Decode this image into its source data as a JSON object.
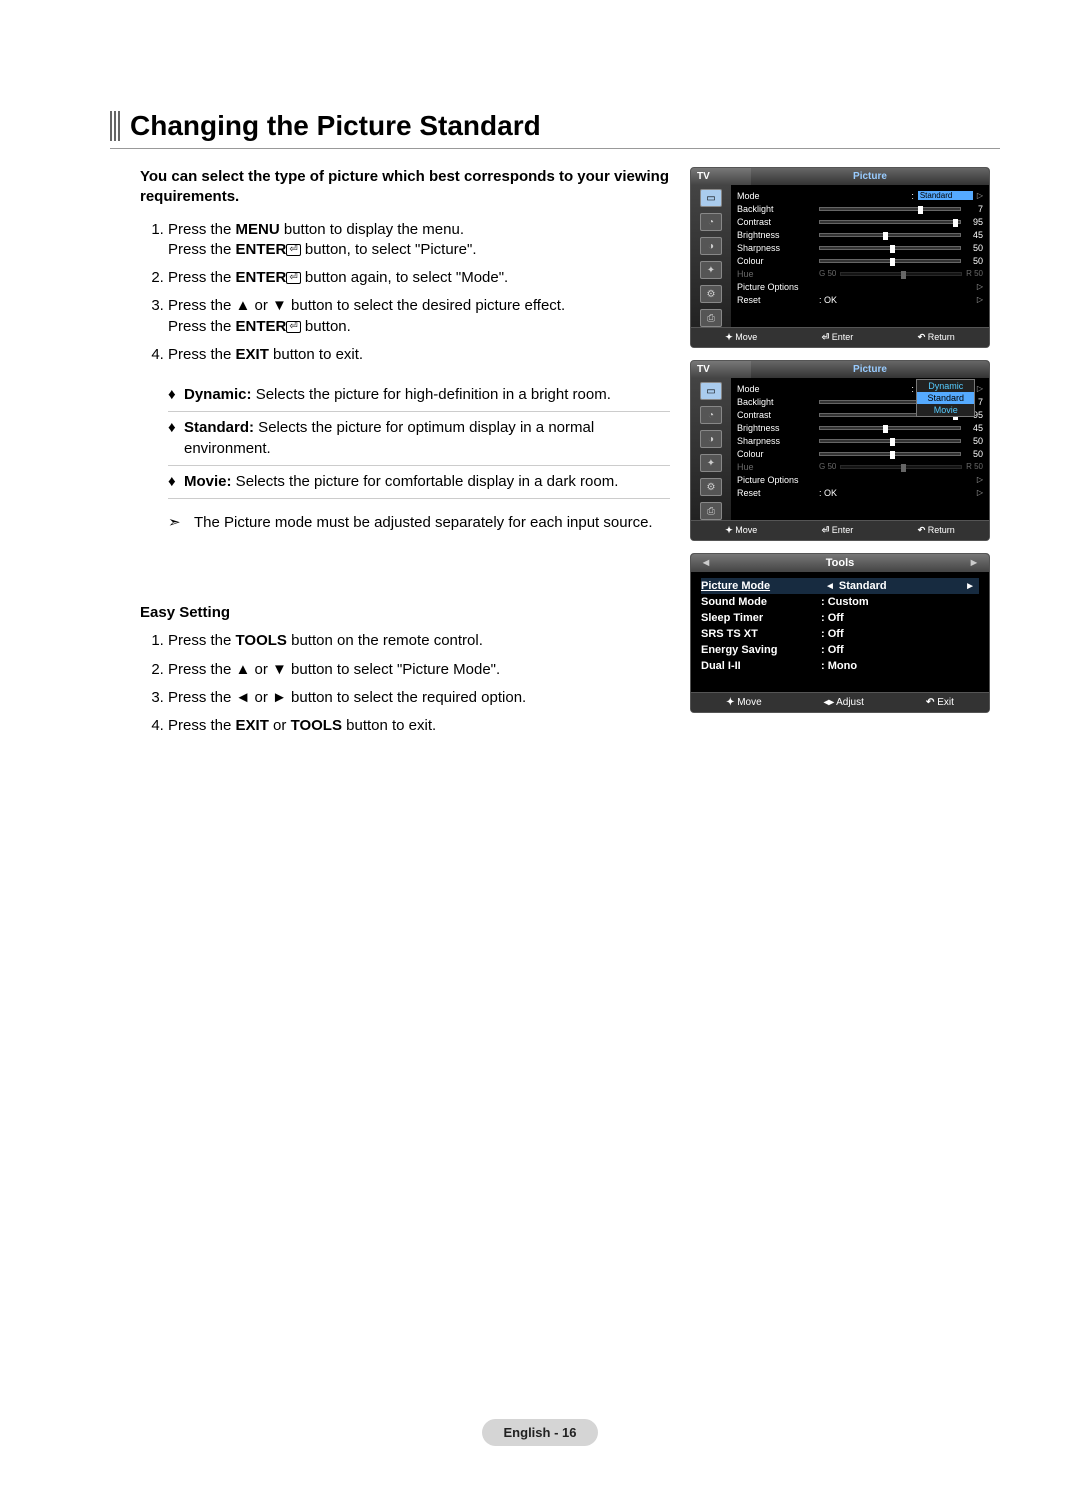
{
  "title": "Changing the Picture Standard",
  "intro": "You can select the type of picture which best corresponds to your viewing requirements.",
  "steps": [
    "Press the <b>MENU</b> button to display the menu.<br>Press the <b>ENTER</b><span class='enter-glyph'>⏎</span> button, to select \"Picture\".",
    "Press the <b>ENTER</b><span class='enter-glyph'>⏎</span> button again, to select \"Mode\".",
    "Press the ▲ or ▼ button to select the desired picture effect.<br>Press the <b>ENTER</b><span class='enter-glyph'>⏎</span> button.",
    "Press the <b>EXIT</b> button to exit."
  ],
  "definitions": [
    {
      "term": "Dynamic:",
      "desc": "Selects the picture for high-definition in a bright room."
    },
    {
      "term": "Standard:",
      "desc": "Selects the picture for optimum display in a normal environment."
    },
    {
      "term": "Movie:",
      "desc": "Selects the picture for comfortable display in a dark room."
    }
  ],
  "note": "The Picture mode must be adjusted separately for each input source.",
  "easy_title": "Easy Setting",
  "easy_steps": [
    "Press the <b>TOOLS</b> button on the remote control.",
    "Press the ▲ or ▼ button to select \"Picture Mode\".",
    "Press the ◄ or ► button to select the required option.",
    "Press the <b>EXIT</b> or <b>TOOLS</b> button to exit."
  ],
  "footer": "English - 16",
  "osd": {
    "tv_label": "TV",
    "category": "Picture",
    "rows": [
      {
        "label": "Mode",
        "value_text": "Standard",
        "highlight": true,
        "arrow": true
      },
      {
        "label": "Backlight",
        "value_num": 7,
        "value_pct": 70
      },
      {
        "label": "Contrast",
        "value_num": 95,
        "value_pct": 95
      },
      {
        "label": "Brightness",
        "value_num": 45,
        "value_pct": 45
      },
      {
        "label": "Sharpness",
        "value_num": 50,
        "value_pct": 50
      },
      {
        "label": "Colour",
        "value_num": 50,
        "value_pct": 50
      }
    ],
    "hue_line": {
      "left_label": "G 50",
      "right_label": "R 50"
    },
    "extra_rows": [
      {
        "label": "Picture Options",
        "arrow": true
      },
      {
        "label": "Reset",
        "value_text": ": OK",
        "arrow": true
      }
    ],
    "footer": [
      {
        "sym": "✦",
        "txt": "Move"
      },
      {
        "sym": "⏎",
        "txt": "Enter"
      },
      {
        "sym": "↶",
        "txt": "Return"
      }
    ],
    "dropdown_options": [
      "Dynamic",
      "Standard",
      "Movie"
    ],
    "dropdown_selected": "Standard",
    "icons": [
      "▭",
      "◔",
      "◑",
      "✦",
      "⚙",
      "⎙"
    ]
  },
  "tools": {
    "title": "Tools",
    "rows": [
      {
        "label": "Picture Mode",
        "value": "Standard",
        "highlight": true,
        "arrows": true
      },
      {
        "label": "Sound Mode",
        "value": ":  Custom"
      },
      {
        "label": "Sleep Timer",
        "value": ":  Off"
      },
      {
        "label": "SRS TS XT",
        "value": ":  Off"
      },
      {
        "label": "Energy Saving",
        "value": ":  Off"
      },
      {
        "label": "Dual I-II",
        "value": ":  Mono"
      }
    ],
    "footer": [
      {
        "sym": "✦",
        "txt": "Move"
      },
      {
        "sym": "◂▸",
        "txt": "Adjust"
      },
      {
        "sym": "↶",
        "txt": "Exit"
      }
    ]
  },
  "colors": {
    "highlight": "#5aaaff",
    "category_text": "#99ccff"
  }
}
